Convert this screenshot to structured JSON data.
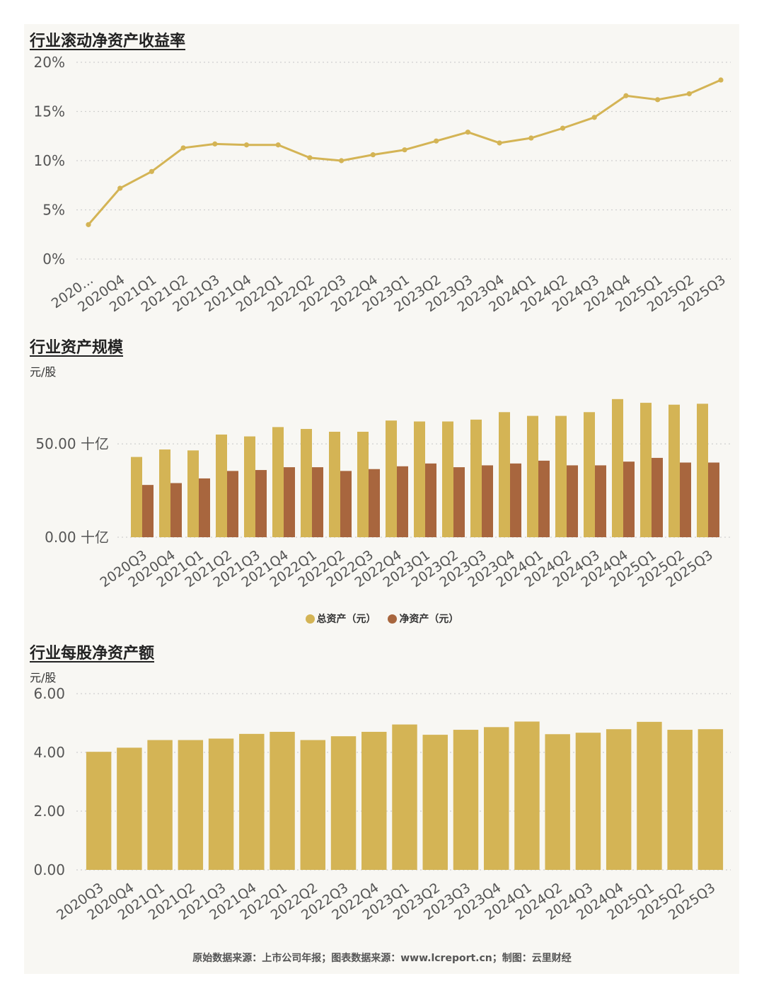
{
  "colors": {
    "gold": "#d4b455",
    "brown": "#a8663e",
    "grid": "#d0d0d0",
    "text": "#555555"
  },
  "chart_data": [
    {
      "id": "roe",
      "type": "line",
      "title": "行业滚动净资产收益率",
      "categories": [
        "2020...",
        "2020Q4",
        "2021Q1",
        "2021Q2",
        "2021Q3",
        "2021Q4",
        "2022Q1",
        "2022Q2",
        "2022Q3",
        "2022Q4",
        "2023Q1",
        "2023Q2",
        "2023Q3",
        "2023Q4",
        "2024Q1",
        "2024Q2",
        "2024Q3",
        "2024Q4",
        "2025Q1",
        "2025Q2",
        "2025Q3"
      ],
      "values": [
        3.5,
        7.2,
        8.9,
        11.3,
        11.7,
        11.6,
        11.6,
        10.3,
        10.0,
        10.6,
        11.1,
        12.0,
        12.9,
        11.8,
        12.3,
        13.3,
        14.4,
        16.6,
        16.2,
        16.8,
        18.2
      ],
      "yticks": [
        0,
        5,
        10,
        15,
        20
      ],
      "ytick_labels": [
        "0%",
        "5%",
        "10%",
        "15%",
        "20%"
      ],
      "ylim": [
        0,
        20
      ],
      "color": "#d4b455"
    },
    {
      "id": "assets",
      "type": "bar",
      "title": "行业资产规模",
      "unit": "元/股",
      "categories": [
        "2020Q3",
        "2020Q4",
        "2021Q1",
        "2021Q2",
        "2021Q3",
        "2021Q4",
        "2022Q1",
        "2022Q2",
        "2022Q3",
        "2022Q4",
        "2023Q1",
        "2023Q2",
        "2023Q3",
        "2023Q4",
        "2024Q1",
        "2024Q2",
        "2024Q3",
        "2024Q4",
        "2025Q1",
        "2025Q2",
        "2025Q3"
      ],
      "series": [
        {
          "name": "总资产（元）",
          "color": "#d4b455",
          "values": [
            43,
            47,
            46.5,
            55,
            54,
            59,
            58,
            56.5,
            56.5,
            62.5,
            62,
            62,
            63,
            67,
            65,
            65,
            67,
            74,
            72,
            71,
            71.5
          ]
        },
        {
          "name": "净资产（元）",
          "color": "#a8663e",
          "values": [
            28,
            29,
            31.5,
            35.5,
            36,
            37.5,
            37.5,
            35.5,
            36.5,
            38,
            39.5,
            37.5,
            38.5,
            39.5,
            41,
            38.5,
            38.5,
            40.5,
            42.5,
            40,
            40
          ]
        }
      ],
      "yticks": [
        0,
        50
      ],
      "ytick_labels": [
        "0.00 十亿",
        "50.00 十亿"
      ],
      "ylim": [
        0,
        80
      ],
      "legend": [
        "总资产（元）",
        "净资产（元）"
      ]
    },
    {
      "id": "bvps",
      "type": "bar",
      "title": "行业每股净资产额",
      "unit": "元/股",
      "categories": [
        "2020Q3",
        "2020Q4",
        "2021Q1",
        "2021Q2",
        "2021Q3",
        "2021Q4",
        "2022Q1",
        "2022Q2",
        "2022Q3",
        "2022Q4",
        "2023Q1",
        "2023Q2",
        "2023Q3",
        "2023Q4",
        "2024Q1",
        "2024Q2",
        "2024Q3",
        "2024Q4",
        "2025Q1",
        "2025Q2",
        "2025Q3"
      ],
      "values": [
        4.02,
        4.16,
        4.42,
        4.42,
        4.47,
        4.63,
        4.7,
        4.42,
        4.55,
        4.7,
        4.95,
        4.6,
        4.77,
        4.86,
        5.05,
        4.62,
        4.67,
        4.79,
        5.04,
        4.77,
        4.79
      ],
      "yticks": [
        0,
        2,
        4,
        6
      ],
      "ytick_labels": [
        "0.00",
        "2.00",
        "4.00",
        "6.00"
      ],
      "ylim": [
        0,
        6
      ],
      "color": "#d4b455"
    }
  ],
  "legend": {
    "total": "总资产（元）",
    "net": "净资产（元）"
  },
  "footer": {
    "source": "原始数据来源：上市公司年报；图表数据来源：www.lcreport.cn；制图：云里财经"
  }
}
